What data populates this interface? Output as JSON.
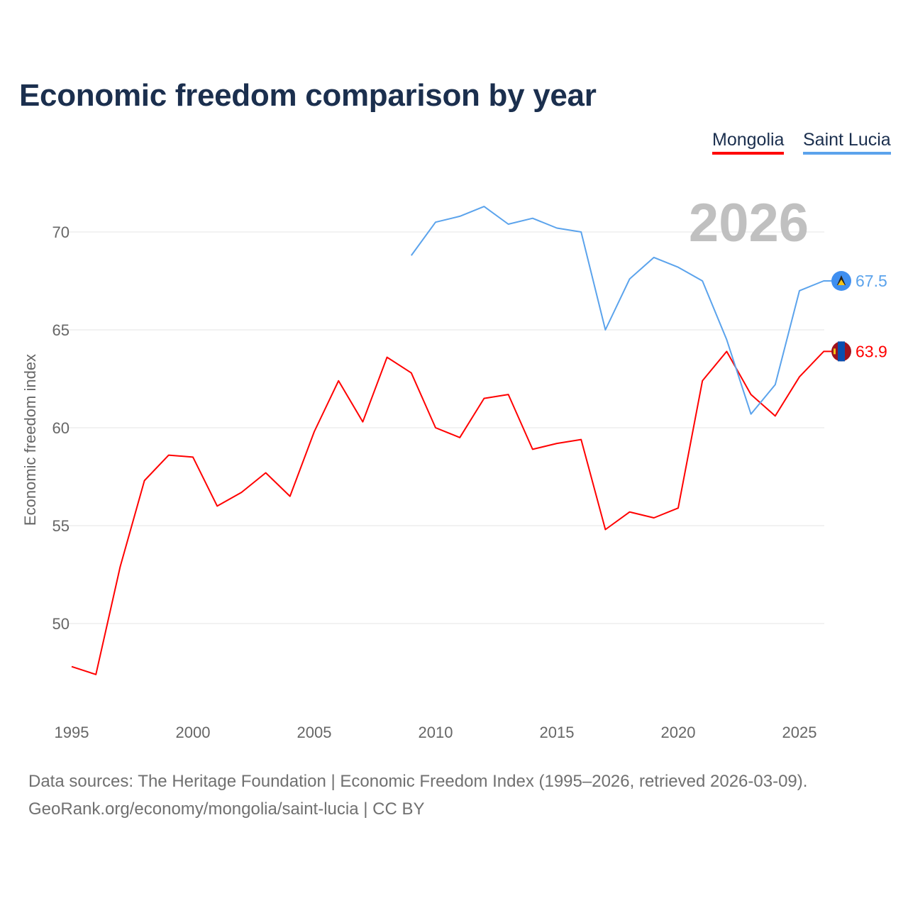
{
  "chart_data": {
    "type": "line",
    "title": "Economic freedom comparison by year",
    "xlabel": "",
    "ylabel": "Economic freedom index",
    "xlim": [
      1995,
      2026
    ],
    "ylim": [
      46.5,
      72
    ],
    "x_ticks": [
      "1995",
      "2000",
      "2005",
      "2010",
      "2015",
      "2020",
      "2025"
    ],
    "y_ticks": [
      "50",
      "55",
      "60",
      "65",
      "70"
    ],
    "grid": true,
    "legend_position": "top-right",
    "current_year_label": "2026",
    "series": [
      {
        "name": "Mongolia",
        "color": "#ff0000",
        "end_label": "63.9",
        "flag": "mongolia-flag",
        "x": [
          1995,
          1996,
          1997,
          1998,
          1999,
          2000,
          2001,
          2002,
          2003,
          2004,
          2005,
          2006,
          2007,
          2008,
          2009,
          2010,
          2011,
          2012,
          2013,
          2014,
          2015,
          2016,
          2017,
          2018,
          2019,
          2020,
          2021,
          2022,
          2023,
          2024,
          2025,
          2026
        ],
        "values": [
          47.8,
          47.4,
          52.9,
          57.3,
          58.6,
          58.5,
          56.0,
          56.7,
          57.7,
          56.5,
          59.8,
          62.4,
          60.3,
          63.6,
          62.8,
          60.0,
          59.5,
          61.5,
          61.7,
          58.9,
          59.2,
          59.4,
          54.8,
          55.7,
          55.4,
          55.9,
          62.4,
          63.9,
          61.7,
          60.6,
          62.6,
          63.9
        ]
      },
      {
        "name": "Saint Lucia",
        "color": "#5ba3ec",
        "end_label": "67.5",
        "flag": "saint-lucia-flag",
        "x": [
          2009,
          2010,
          2011,
          2012,
          2013,
          2014,
          2015,
          2016,
          2017,
          2018,
          2019,
          2020,
          2021,
          2022,
          2023,
          2024,
          2025,
          2026
        ],
        "values": [
          68.8,
          70.5,
          70.8,
          71.3,
          70.4,
          70.7,
          70.2,
          70.0,
          65.0,
          67.6,
          68.7,
          68.2,
          67.5,
          64.5,
          60.7,
          62.2,
          67.0,
          67.5
        ]
      }
    ]
  },
  "footer": {
    "line1": "Data sources: The Heritage Foundation | Economic Freedom Index (1995–2026, retrieved 2026-03-09).",
    "line2": "GeoRank.org/economy/mongolia/saint-lucia | CC BY"
  }
}
